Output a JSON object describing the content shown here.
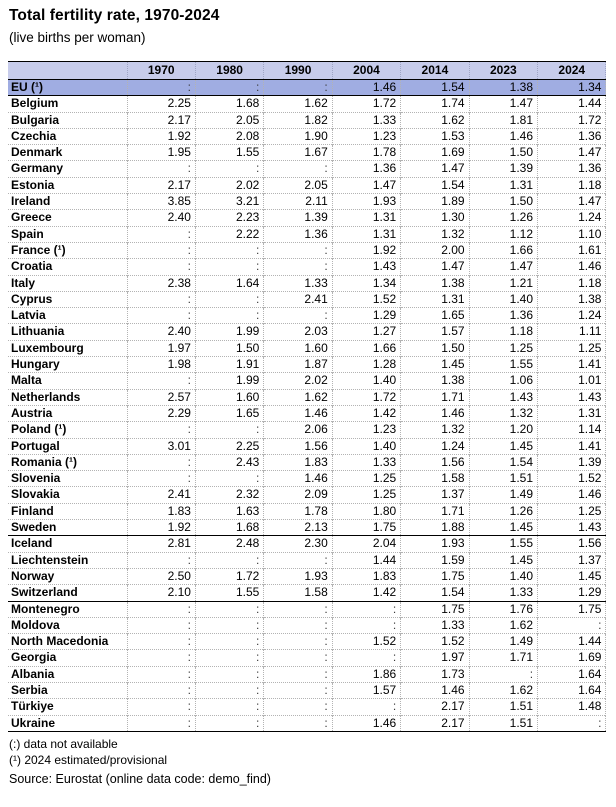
{
  "title": "Total fertility rate, 1970-2024",
  "subtitle": "(live births per woman)",
  "colors": {
    "header_bg": "#C7CCEB",
    "eu_row_bg": "#A0ADE2",
    "grid_dotted": "#b3b3b3"
  },
  "table": {
    "missing_symbol": ":",
    "columns": [
      "1970",
      "1980",
      "1990",
      "2004",
      "2014",
      "2023",
      "2024"
    ],
    "sections": [
      {
        "id": "eu-aggregate",
        "divider": "thin",
        "rows": [
          {
            "name": "EU (¹)",
            "highlight": true,
            "values": [
              ":",
              ":",
              ":",
              "1.46",
              "1.54",
              "1.38",
              "1.34"
            ]
          }
        ]
      },
      {
        "id": "eu-members",
        "divider": "thick",
        "rows": [
          {
            "name": "Belgium",
            "values": [
              "2.25",
              "1.68",
              "1.62",
              "1.72",
              "1.74",
              "1.47",
              "1.44"
            ]
          },
          {
            "name": "Bulgaria",
            "values": [
              "2.17",
              "2.05",
              "1.82",
              "1.33",
              "1.62",
              "1.81",
              "1.72"
            ]
          },
          {
            "name": "Czechia",
            "values": [
              "1.92",
              "2.08",
              "1.90",
              "1.23",
              "1.53",
              "1.46",
              "1.36"
            ]
          },
          {
            "name": "Denmark",
            "values": [
              "1.95",
              "1.55",
              "1.67",
              "1.78",
              "1.69",
              "1.50",
              "1.47"
            ]
          },
          {
            "name": "Germany",
            "values": [
              ":",
              ":",
              ":",
              "1.36",
              "1.47",
              "1.39",
              "1.36"
            ]
          },
          {
            "name": "Estonia",
            "values": [
              "2.17",
              "2.02",
              "2.05",
              "1.47",
              "1.54",
              "1.31",
              "1.18"
            ]
          },
          {
            "name": "Ireland",
            "values": [
              "3.85",
              "3.21",
              "2.11",
              "1.93",
              "1.89",
              "1.50",
              "1.47"
            ]
          },
          {
            "name": "Greece",
            "values": [
              "2.40",
              "2.23",
              "1.39",
              "1.31",
              "1.30",
              "1.26",
              "1.24"
            ]
          },
          {
            "name": "Spain",
            "values": [
              ":",
              "2.22",
              "1.36",
              "1.31",
              "1.32",
              "1.12",
              "1.10"
            ]
          },
          {
            "name": "France (¹)",
            "values": [
              ":",
              ":",
              ":",
              "1.92",
              "2.00",
              "1.66",
              "1.61"
            ]
          },
          {
            "name": "Croatia",
            "values": [
              ":",
              ":",
              ":",
              "1.43",
              "1.47",
              "1.47",
              "1.46"
            ]
          },
          {
            "name": "Italy",
            "values": [
              "2.38",
              "1.64",
              "1.33",
              "1.34",
              "1.38",
              "1.21",
              "1.18"
            ]
          },
          {
            "name": "Cyprus",
            "values": [
              ":",
              ":",
              "2.41",
              "1.52",
              "1.31",
              "1.40",
              "1.38"
            ]
          },
          {
            "name": "Latvia",
            "values": [
              ":",
              ":",
              ":",
              "1.29",
              "1.65",
              "1.36",
              "1.24"
            ]
          },
          {
            "name": "Lithuania",
            "values": [
              "2.40",
              "1.99",
              "2.03",
              "1.27",
              "1.57",
              "1.18",
              "1.11"
            ]
          },
          {
            "name": "Luxembourg",
            "values": [
              "1.97",
              "1.50",
              "1.60",
              "1.66",
              "1.50",
              "1.25",
              "1.25"
            ]
          },
          {
            "name": "Hungary",
            "values": [
              "1.98",
              "1.91",
              "1.87",
              "1.28",
              "1.45",
              "1.55",
              "1.41"
            ]
          },
          {
            "name": "Malta",
            "values": [
              ":",
              "1.99",
              "2.02",
              "1.40",
              "1.38",
              "1.06",
              "1.01"
            ]
          },
          {
            "name": "Netherlands",
            "values": [
              "2.57",
              "1.60",
              "1.62",
              "1.72",
              "1.71",
              "1.43",
              "1.43"
            ]
          },
          {
            "name": "Austria",
            "values": [
              "2.29",
              "1.65",
              "1.46",
              "1.42",
              "1.46",
              "1.32",
              "1.31"
            ]
          },
          {
            "name": "Poland (¹)",
            "values": [
              ":",
              ":",
              "2.06",
              "1.23",
              "1.32",
              "1.20",
              "1.14"
            ]
          },
          {
            "name": "Portugal",
            "values": [
              "3.01",
              "2.25",
              "1.56",
              "1.40",
              "1.24",
              "1.45",
              "1.41"
            ]
          },
          {
            "name": "Romania (¹)",
            "values": [
              ":",
              "2.43",
              "1.83",
              "1.33",
              "1.56",
              "1.54",
              "1.39"
            ]
          },
          {
            "name": "Slovenia",
            "values": [
              ":",
              ":",
              "1.46",
              "1.25",
              "1.58",
              "1.51",
              "1.52"
            ]
          },
          {
            "name": "Slovakia",
            "values": [
              "2.41",
              "2.32",
              "2.09",
              "1.25",
              "1.37",
              "1.49",
              "1.46"
            ]
          },
          {
            "name": "Finland",
            "values": [
              "1.83",
              "1.63",
              "1.78",
              "1.80",
              "1.71",
              "1.26",
              "1.25"
            ]
          },
          {
            "name": "Sweden",
            "values": [
              "1.92",
              "1.68",
              "2.13",
              "1.75",
              "1.88",
              "1.45",
              "1.43"
            ]
          }
        ]
      },
      {
        "id": "efta",
        "divider": "thick",
        "rows": [
          {
            "name": "Iceland",
            "values": [
              "2.81",
              "2.48",
              "2.30",
              "2.04",
              "1.93",
              "1.55",
              "1.56"
            ]
          },
          {
            "name": "Liechtenstein",
            "values": [
              ":",
              ":",
              ":",
              "1.44",
              "1.59",
              "1.45",
              "1.37"
            ]
          },
          {
            "name": "Norway",
            "values": [
              "2.50",
              "1.72",
              "1.93",
              "1.83",
              "1.75",
              "1.40",
              "1.45"
            ]
          },
          {
            "name": "Switzerland",
            "values": [
              "2.10",
              "1.55",
              "1.58",
              "1.42",
              "1.54",
              "1.33",
              "1.29"
            ]
          }
        ]
      },
      {
        "id": "other-countries",
        "divider": "thick",
        "rows": [
          {
            "name": "Montenegro",
            "values": [
              ":",
              ":",
              ":",
              ":",
              "1.75",
              "1.76",
              "1.75"
            ]
          },
          {
            "name": "Moldova",
            "values": [
              ":",
              ":",
              ":",
              ":",
              "1.33",
              "1.62",
              ":"
            ]
          },
          {
            "name": "North Macedonia",
            "values": [
              ":",
              ":",
              ":",
              "1.52",
              "1.52",
              "1.49",
              "1.44"
            ]
          },
          {
            "name": "Georgia",
            "values": [
              ":",
              ":",
              ":",
              ":",
              "1.97",
              "1.71",
              "1.69"
            ]
          },
          {
            "name": "Albania",
            "values": [
              ":",
              ":",
              ":",
              "1.86",
              "1.73",
              ":",
              "1.64"
            ]
          },
          {
            "name": "Serbia",
            "values": [
              ":",
              ":",
              ":",
              "1.57",
              "1.46",
              "1.62",
              "1.64"
            ]
          },
          {
            "name": "Türkiye",
            "values": [
              ":",
              ":",
              ":",
              ":",
              "2.17",
              "1.51",
              "1.48"
            ]
          },
          {
            "name": "Ukraine",
            "values": [
              ":",
              ":",
              ":",
              "1.46",
              "2.17",
              "1.51",
              ":"
            ]
          }
        ]
      }
    ]
  },
  "footnotes": [
    "(:) data not available",
    "(¹) 2024 estimated/provisional"
  ],
  "source": "Source: Eurostat (online data code: demo_find)"
}
